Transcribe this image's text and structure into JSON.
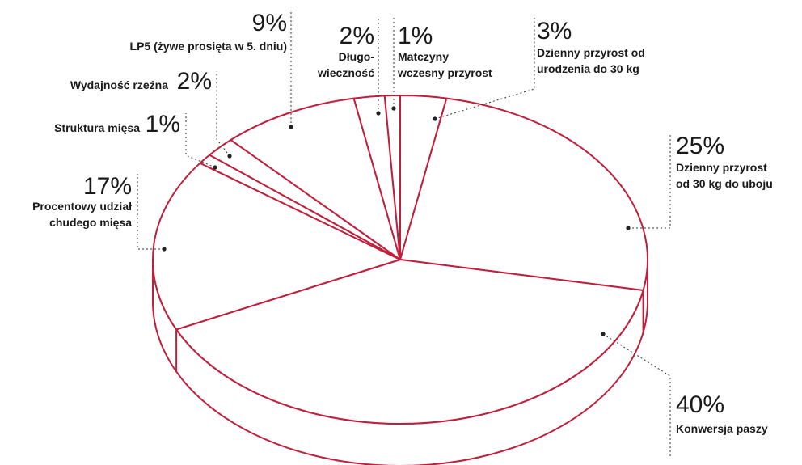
{
  "chart_data": {
    "type": "pie",
    "style": "3d",
    "colors": {
      "outline": "#c01f3c",
      "fill": "#ffffff",
      "text": "#1a1a1a"
    },
    "slices": [
      {
        "value": 3,
        "pct_label": "3%",
        "label": [
          "Dzienny przyrost od",
          "urodzenia do 30 kg"
        ]
      },
      {
        "value": 25,
        "pct_label": "25%",
        "label": [
          "Dzienny przyrost",
          "od 30 kg do uboju"
        ]
      },
      {
        "value": 40,
        "pct_label": "40%",
        "label": [
          "Konwersja paszy"
        ]
      },
      {
        "value": 17,
        "pct_label": "17%",
        "label": [
          "Procentowy udział",
          "chudego mięsa"
        ]
      },
      {
        "value": 1,
        "pct_label": "1%",
        "label": [
          "Struktura mięsa"
        ]
      },
      {
        "value": 2,
        "pct_label": "2%",
        "label": [
          "Wydajność rzeźna"
        ]
      },
      {
        "value": 9,
        "pct_label": "9%",
        "label": [
          "LP5 (żywe prosięta w 5. dniu)"
        ]
      },
      {
        "value": 2,
        "pct_label": "2%",
        "label": [
          "Długo-",
          "wieczność"
        ]
      },
      {
        "value": 1,
        "pct_label": "1%",
        "label": [
          "Matczyny",
          "wczesny przyrost"
        ]
      }
    ]
  }
}
